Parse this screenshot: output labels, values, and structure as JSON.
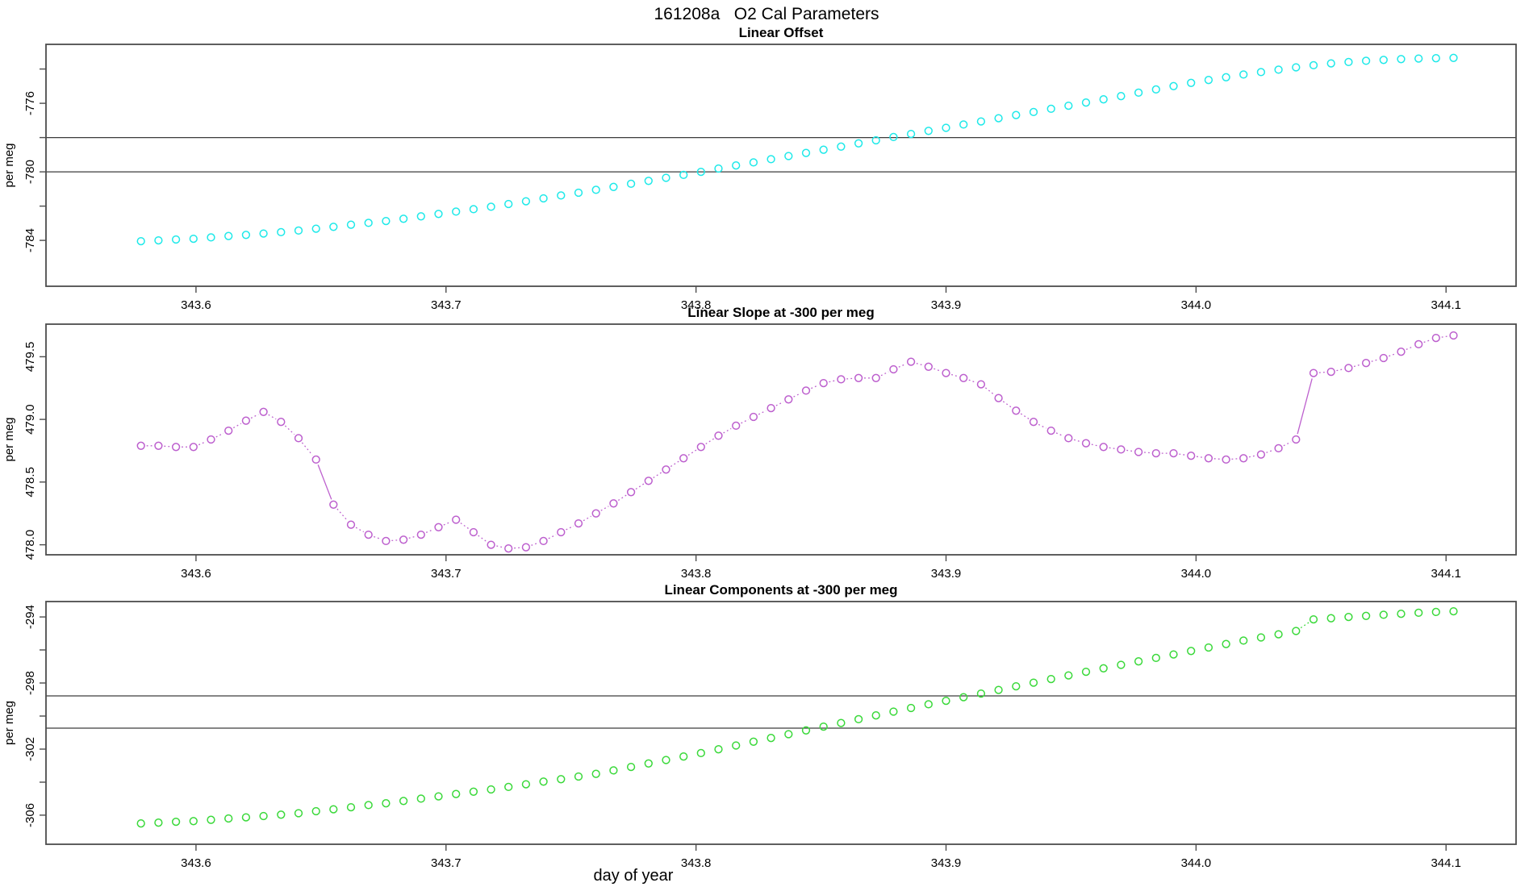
{
  "page": {
    "title": "161208a   O2 Cal Parameters",
    "xlabel": "day of year"
  },
  "chart_data": [
    {
      "type": "scatter",
      "title": "Linear Offset",
      "ylabel": "per meg",
      "color": "#1FE9E9",
      "marker": "open-circle",
      "line_style": "none",
      "x_start": 343.578,
      "x_step": 0.007,
      "xlim": [
        343.54,
        344.128
      ],
      "ylim": [
        -786.68,
        -772.56
      ],
      "x_ticks": [
        343.6,
        343.7,
        343.8,
        343.9,
        344.0,
        344.1
      ],
      "x_tick_labels": [
        "343.6",
        "343.7",
        "343.8",
        "343.9",
        "344.0",
        "344.1"
      ],
      "y_ticks": [
        -774,
        -776,
        -778,
        -780,
        -782,
        -784
      ],
      "y_tick_labels": [
        "",
        "-776",
        "",
        "-780",
        "",
        "-784"
      ],
      "reference_lines": [
        -778.0,
        -780.0
      ],
      "values": [
        -784.05,
        -784.0,
        -783.95,
        -783.91,
        -783.83,
        -783.75,
        -783.68,
        -783.6,
        -783.52,
        -783.43,
        -783.32,
        -783.21,
        -783.09,
        -782.98,
        -782.87,
        -782.74,
        -782.6,
        -782.46,
        -782.32,
        -782.18,
        -782.04,
        -781.88,
        -781.72,
        -781.55,
        -781.38,
        -781.22,
        -781.05,
        -780.88,
        -780.7,
        -780.53,
        -780.35,
        -780.18,
        -780.0,
        -779.81,
        -779.63,
        -779.45,
        -779.26,
        -779.08,
        -778.9,
        -778.71,
        -778.53,
        -778.34,
        -778.16,
        -777.97,
        -777.79,
        -777.61,
        -777.43,
        -777.24,
        -777.06,
        -776.87,
        -776.69,
        -776.51,
        -776.32,
        -776.14,
        -775.96,
        -775.77,
        -775.58,
        -775.38,
        -775.19,
        -775.0,
        -774.81,
        -774.64,
        -774.48,
        -774.32,
        -774.18,
        -774.04,
        -773.9,
        -773.78,
        -773.67,
        -773.59,
        -773.52,
        -773.47,
        -773.42,
        -773.39,
        -773.37,
        -773.35
      ]
    },
    {
      "type": "scatter",
      "title": "Linear Slope at -300 per meg",
      "ylabel": "per meg",
      "color": "#BD60CE",
      "marker": "open-circle",
      "line_style": "dots",
      "x_start": 343.578,
      "x_step": 0.007,
      "xlim": [
        343.54,
        344.128
      ],
      "ylim": [
        477.92,
        479.76
      ],
      "x_ticks": [
        343.6,
        343.7,
        343.8,
        343.9,
        344.0,
        344.1
      ],
      "x_tick_labels": [
        "343.6",
        "343.7",
        "343.8",
        "343.9",
        "344.0",
        "344.1"
      ],
      "y_ticks": [
        478.0,
        478.5,
        479.0,
        479.5
      ],
      "y_tick_labels": [
        "478.0",
        "478.5",
        "479.0",
        "479.5"
      ],
      "reference_lines": [],
      "values": [
        478.79,
        478.79,
        478.78,
        478.78,
        478.84,
        478.91,
        478.99,
        479.06,
        478.98,
        478.85,
        478.68,
        478.32,
        478.16,
        478.08,
        478.03,
        478.04,
        478.08,
        478.14,
        478.2,
        478.1,
        478.0,
        477.97,
        477.98,
        478.03,
        478.1,
        478.17,
        478.25,
        478.33,
        478.42,
        478.51,
        478.6,
        478.69,
        478.78,
        478.87,
        478.95,
        479.02,
        479.09,
        479.16,
        479.23,
        479.29,
        479.32,
        479.33,
        479.33,
        479.4,
        479.46,
        479.42,
        479.37,
        479.33,
        479.28,
        479.17,
        479.07,
        478.98,
        478.91,
        478.85,
        478.81,
        478.78,
        478.76,
        478.74,
        478.73,
        478.73,
        478.71,
        478.69,
        478.68,
        478.69,
        478.72,
        478.77,
        478.84,
        479.37,
        479.38,
        479.41,
        479.45,
        479.49,
        479.54,
        479.6,
        479.65,
        479.67
      ]
    },
    {
      "type": "scatter",
      "title": "Linear Components at -300 per meg",
      "ylabel": "per meg",
      "color": "#3BD93B",
      "marker": "open-circle",
      "line_style": "jumps",
      "x_start": 343.578,
      "x_step": 0.007,
      "xlim": [
        343.54,
        344.128
      ],
      "ylim": [
        -307.76,
        -293.07
      ],
      "x_ticks": [
        343.6,
        343.7,
        343.8,
        343.9,
        344.0,
        344.1
      ],
      "x_tick_labels": [
        "343.6",
        "343.7",
        "343.8",
        "343.9",
        "344.0",
        "344.1"
      ],
      "y_ticks": [
        -294,
        -296,
        -298,
        -300,
        -302,
        -304,
        -306
      ],
      "y_tick_labels": [
        "-294",
        "",
        "-298",
        "",
        "-302",
        "",
        "-306"
      ],
      "reference_lines": [
        -298.78,
        -300.73
      ],
      "values": [
        -306.5,
        -306.45,
        -306.4,
        -306.36,
        -306.28,
        -306.2,
        -306.13,
        -306.05,
        -305.97,
        -305.88,
        -305.76,
        -305.64,
        -305.52,
        -305.39,
        -305.28,
        -305.14,
        -305.0,
        -304.86,
        -304.72,
        -304.58,
        -304.44,
        -304.29,
        -304.13,
        -303.97,
        -303.82,
        -303.66,
        -303.5,
        -303.29,
        -303.08,
        -302.87,
        -302.66,
        -302.45,
        -302.24,
        -302.01,
        -301.78,
        -301.55,
        -301.33,
        -301.1,
        -300.87,
        -300.64,
        -300.42,
        -300.19,
        -299.96,
        -299.73,
        -299.51,
        -299.29,
        -299.08,
        -298.86,
        -298.64,
        -298.42,
        -298.2,
        -297.98,
        -297.76,
        -297.54,
        -297.32,
        -297.11,
        -296.9,
        -296.69,
        -296.48,
        -296.27,
        -296.06,
        -295.85,
        -295.64,
        -295.43,
        -295.24,
        -295.05,
        -294.85,
        -294.15,
        -294.08,
        -294.0,
        -293.94,
        -293.87,
        -293.81,
        -293.75,
        -293.7,
        -293.66
      ]
    }
  ]
}
